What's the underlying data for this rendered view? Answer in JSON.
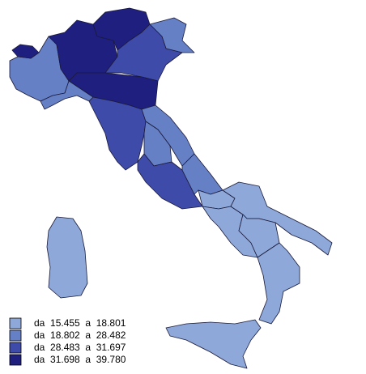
{
  "legend": [
    {
      "label": "da  15.455  a  18.801",
      "color": "#8ea8d9"
    },
    {
      "label": "da  18.802  a  28.482",
      "color": "#6680c6"
    },
    {
      "label": "da  28.483  a  31.697",
      "color": "#3f4ba9"
    },
    {
      "label": "da  31.698  a  39.780",
      "color": "#1f1f80"
    }
  ]
}
